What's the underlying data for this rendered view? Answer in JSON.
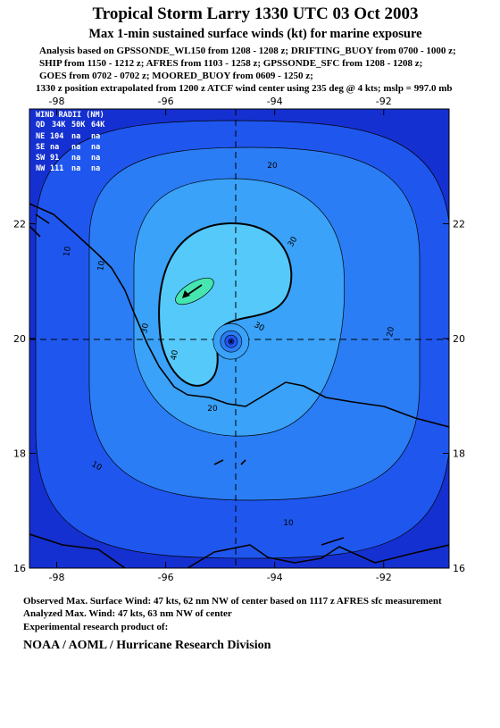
{
  "header": {
    "title": "Tropical Storm Larry 1330 UTC 03 Oct 2003",
    "subtitle": "Max 1-min sustained surface winds (kt) for marine exposure",
    "lines": [
      "Analysis based on  GPSSONDE_WL150 from 1208 - 1208 z;  DRIFTING_BUOY from 0700 - 1000 z;",
      "SHIP from 1150 - 1212 z;  AFRES from 1103 - 1258 z;  GPSSONDE_SFC from 1208 - 1208 z;",
      "GOES from 0702 - 0702 z;  MOORED_BUOY from 0609 - 1250 z;",
      "1330 z position extrapolated from 1200 z ATCF wind center using 235 deg @ 4 kts; mslp = 997.0 mb"
    ]
  },
  "map": {
    "xlim": [
      -98.5,
      -90.8
    ],
    "ylim": [
      16,
      24
    ],
    "xticks": [
      -98,
      -96,
      -94,
      -92
    ],
    "yticks": [
      16,
      18,
      20,
      22
    ],
    "center": {
      "lon": -94.8,
      "lat": 19.95
    },
    "max_wind": {
      "lon": -95.7,
      "lat": 20.7
    },
    "contour_levels": [
      10,
      20,
      30,
      40
    ],
    "contour_labels": [
      20,
      30,
      10,
      10,
      30,
      40,
      30,
      20,
      20,
      10,
      10
    ],
    "wind_radii": {
      "title": "WIND RADII (NM)",
      "columns": [
        "QD",
        "34K",
        "50K",
        "64K"
      ],
      "rows": [
        [
          "NE",
          104,
          "na",
          "na"
        ],
        [
          "SE",
          "na",
          "na",
          "na"
        ],
        [
          "SW",
          91,
          "na",
          "na"
        ],
        [
          "NW",
          111,
          "na",
          "na"
        ]
      ]
    }
  },
  "footer": {
    "lines": [
      "Observed Max. Surface Wind: 47 kts, 62 nm NW of center based on 1117 z AFRES sfc measurement",
      "Analyzed Max. Wind: 47 kts, 63 nm NW of center",
      "Experimental research product of:"
    ],
    "org": "NOAA / AOML / Hurricane Research Division"
  }
}
